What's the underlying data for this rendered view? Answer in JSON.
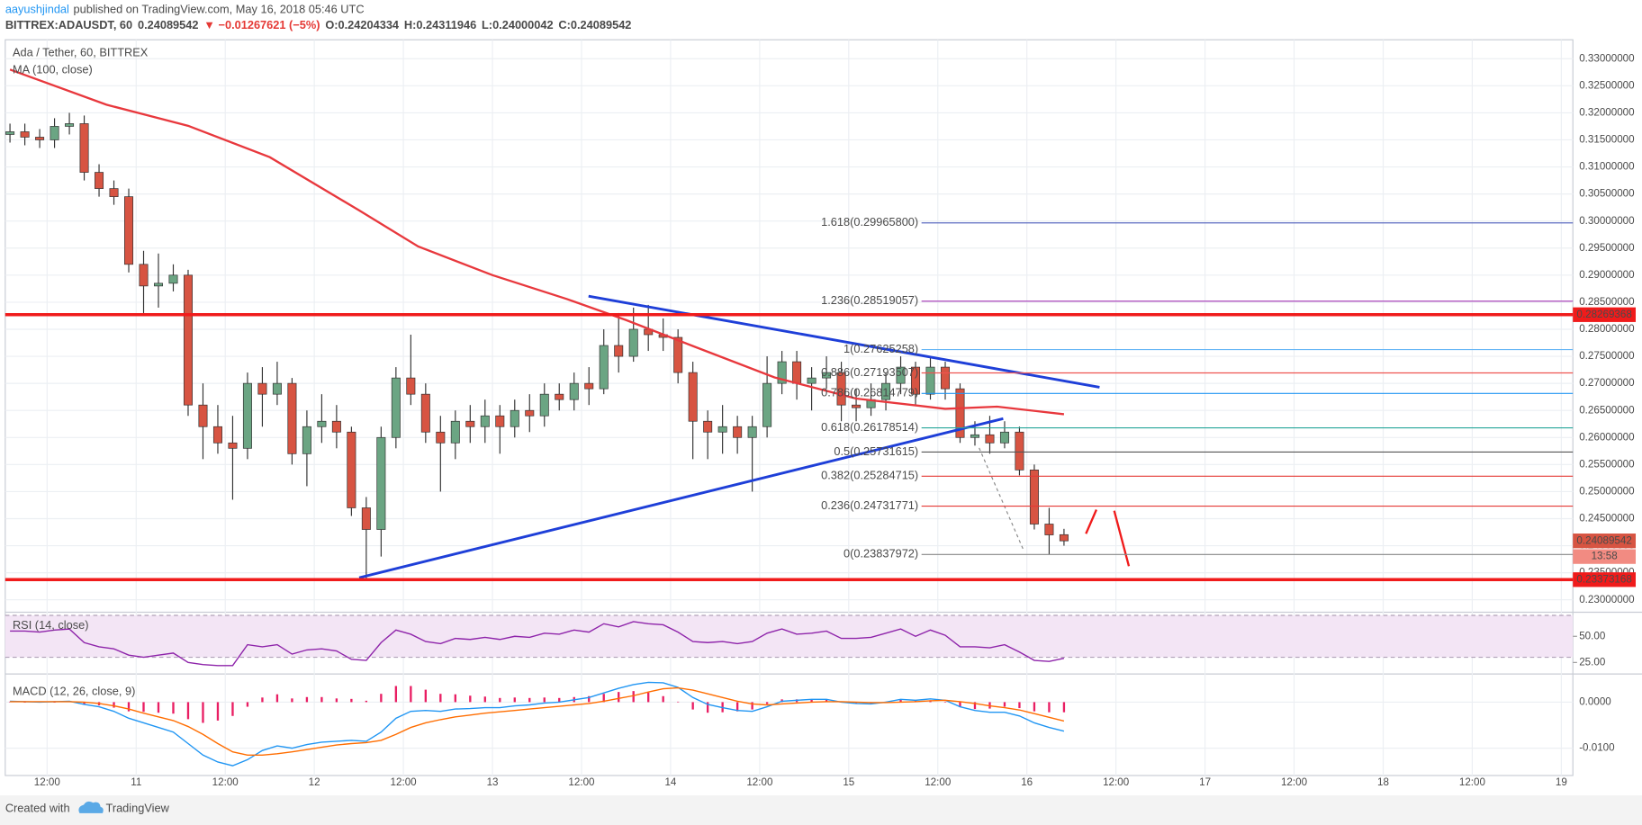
{
  "header": {
    "author": "aayushjindal",
    "published": "published on TradingView.com, May 16, 2018 05:46 UTC",
    "symbol": "BITTREX:ADAUSDT, 60",
    "last": "0.24089542",
    "change": "▼ −0.01267621 (−5%)",
    "ohlc": [
      "O:0.24204334",
      "H:0.24311946",
      "L:0.24000042",
      "C:0.24089542"
    ]
  },
  "footer": {
    "created": "Created with",
    "brand": "TradingView"
  },
  "chart_data": {
    "type": "candlestick",
    "title": "Ada / Tether, 60, BITTREX",
    "up_color": "#6ba583",
    "down_color": "#d75442",
    "grid": true,
    "x": [
      7,
      9,
      11,
      13,
      15,
      17,
      19,
      21,
      23,
      25,
      27,
      29,
      31,
      33,
      35,
      37,
      39,
      41,
      43,
      45,
      47,
      49,
      51,
      53,
      55,
      57,
      59,
      61,
      63,
      65,
      67,
      69,
      71,
      73,
      75,
      77,
      79,
      81,
      83,
      85,
      87,
      89,
      91,
      93,
      95,
      97,
      99,
      101,
      103,
      105,
      107,
      109,
      111,
      113,
      115,
      117,
      119,
      121,
      123,
      125,
      127,
      129,
      131,
      133,
      135,
      137,
      139,
      141,
      143,
      145,
      147,
      149
    ],
    "open": [
      0.316,
      0.3165,
      0.3155,
      0.315,
      0.3175,
      0.318,
      0.309,
      0.306,
      0.3045,
      0.292,
      0.288,
      0.2885,
      0.29,
      0.266,
      0.262,
      0.259,
      0.258,
      0.27,
      0.268,
      0.27,
      0.257,
      0.262,
      0.263,
      0.261,
      0.247,
      0.243,
      0.26,
      0.271,
      0.268,
      0.261,
      0.259,
      0.263,
      0.262,
      0.264,
      0.262,
      0.265,
      0.264,
      0.268,
      0.267,
      0.27,
      0.269,
      0.277,
      0.275,
      0.28,
      0.279,
      0.2785,
      0.272,
      0.263,
      0.261,
      0.262,
      0.26,
      0.262,
      0.27,
      0.274,
      0.27,
      0.271,
      0.272,
      0.266,
      0.2655,
      0.267,
      0.27,
      0.273,
      0.268,
      0.273,
      0.269,
      0.26,
      0.2605,
      0.259,
      0.261,
      0.254,
      0.244,
      0.24204334
    ],
    "high": [
      0.318,
      0.318,
      0.317,
      0.319,
      0.32,
      0.3195,
      0.3105,
      0.3075,
      0.306,
      0.2945,
      0.294,
      0.292,
      0.291,
      0.27,
      0.266,
      0.264,
      0.272,
      0.273,
      0.274,
      0.271,
      0.265,
      0.268,
      0.266,
      0.262,
      0.249,
      0.262,
      0.273,
      0.279,
      0.27,
      0.264,
      0.265,
      0.266,
      0.267,
      0.266,
      0.267,
      0.268,
      0.27,
      0.27,
      0.272,
      0.273,
      0.28,
      0.283,
      0.284,
      0.2845,
      0.282,
      0.28,
      0.274,
      0.265,
      0.266,
      0.264,
      0.264,
      0.275,
      0.276,
      0.276,
      0.273,
      0.275,
      0.274,
      0.269,
      0.27,
      0.272,
      0.275,
      0.274,
      0.275,
      0.274,
      0.27,
      0.263,
      0.264,
      0.263,
      0.262,
      0.255,
      0.247,
      0.24311946
    ],
    "low": [
      0.3145,
      0.314,
      0.3135,
      0.3135,
      0.316,
      0.3075,
      0.3045,
      0.303,
      0.2905,
      0.283,
      0.284,
      0.287,
      0.264,
      0.256,
      0.257,
      0.2485,
      0.256,
      0.262,
      0.266,
      0.255,
      0.251,
      0.259,
      0.258,
      0.2455,
      0.2337,
      0.238,
      0.258,
      0.266,
      0.259,
      0.25,
      0.256,
      0.259,
      0.259,
      0.257,
      0.26,
      0.261,
      0.262,
      0.265,
      0.265,
      0.266,
      0.268,
      0.272,
      0.274,
      0.276,
      0.276,
      0.27,
      0.256,
      0.256,
      0.257,
      0.257,
      0.25,
      0.26,
      0.268,
      0.267,
      0.265,
      0.269,
      0.263,
      0.263,
      0.264,
      0.265,
      0.268,
      0.266,
      0.267,
      0.267,
      0.259,
      0.2585,
      0.257,
      0.258,
      0.253,
      0.243,
      0.2384,
      0.24000042
    ],
    "close": [
      0.3165,
      0.3155,
      0.315,
      0.3175,
      0.318,
      0.309,
      0.306,
      0.3045,
      0.292,
      0.288,
      0.2885,
      0.29,
      0.266,
      0.262,
      0.259,
      0.258,
      0.27,
      0.268,
      0.27,
      0.257,
      0.262,
      0.263,
      0.261,
      0.247,
      0.243,
      0.26,
      0.271,
      0.268,
      0.261,
      0.259,
      0.263,
      0.262,
      0.264,
      0.262,
      0.265,
      0.264,
      0.268,
      0.267,
      0.27,
      0.269,
      0.277,
      0.275,
      0.28,
      0.279,
      0.2785,
      0.272,
      0.263,
      0.261,
      0.262,
      0.26,
      0.262,
      0.27,
      0.274,
      0.27,
      0.271,
      0.272,
      0.266,
      0.2655,
      0.267,
      0.27,
      0.273,
      0.268,
      0.273,
      0.269,
      0.26,
      0.2605,
      0.259,
      0.261,
      0.254,
      0.244,
      0.242,
      0.24089542
    ],
    "xlim": [
      6.36,
      217.56
    ],
    "xticks": [
      {
        "value": 12,
        "label": "12:00"
      },
      {
        "value": 24,
        "label": "11"
      },
      {
        "value": 36,
        "label": "12:00"
      },
      {
        "value": 48,
        "label": "12"
      },
      {
        "value": 60,
        "label": "12:00"
      },
      {
        "value": 72,
        "label": "13"
      },
      {
        "value": 84,
        "label": "12:00"
      },
      {
        "value": 96,
        "label": "14"
      },
      {
        "value": 108,
        "label": "12:00"
      },
      {
        "value": 120,
        "label": "15"
      },
      {
        "value": 132,
        "label": "12:00"
      },
      {
        "value": 144,
        "label": "16"
      },
      {
        "value": 156,
        "label": "12:00"
      },
      {
        "value": 168,
        "label": "17"
      },
      {
        "value": 180,
        "label": "12:00"
      },
      {
        "value": 192,
        "label": "18"
      },
      {
        "value": 204,
        "label": "12:00"
      },
      {
        "value": 216,
        "label": "19"
      }
    ],
    "ylim": [
      0.2279,
      0.3335
    ],
    "yticks": [
      {
        "value": 0.23,
        "label": "0.23000000"
      },
      {
        "value": 0.235,
        "label": "0.23500000"
      },
      {
        "value": 0.24,
        "label": "0.24000000"
      },
      {
        "value": 0.245,
        "label": "0.24500000"
      },
      {
        "value": 0.25,
        "label": "0.25000000"
      },
      {
        "value": 0.255,
        "label": "0.25500000"
      },
      {
        "value": 0.26,
        "label": "0.26000000"
      },
      {
        "value": 0.265,
        "label": "0.26500000"
      },
      {
        "value": 0.27,
        "label": "0.27000000"
      },
      {
        "value": 0.275,
        "label": "0.27500000"
      },
      {
        "value": 0.28,
        "label": "0.28000000"
      },
      {
        "value": 0.285,
        "label": "0.28500000"
      },
      {
        "value": 0.29,
        "label": "0.29000000"
      },
      {
        "value": 0.295,
        "label": "0.29500000"
      },
      {
        "value": 0.3,
        "label": "0.30000000"
      },
      {
        "value": 0.305,
        "label": "0.30500000"
      },
      {
        "value": 0.31,
        "label": "0.31000000"
      },
      {
        "value": 0.315,
        "label": "0.31500000"
      },
      {
        "value": 0.32,
        "label": "0.32000000"
      },
      {
        "value": 0.325,
        "label": "0.32500000"
      },
      {
        "value": 0.33,
        "label": "0.33000000"
      }
    ],
    "ma": {
      "name": "MA (100, close)",
      "color": "#e8383d",
      "x": [
        7,
        20,
        31,
        42,
        54,
        62,
        72,
        82,
        90,
        99,
        110,
        121,
        133,
        140,
        149
      ],
      "values": [
        0.328,
        0.3215,
        0.3176,
        0.3118,
        0.302,
        0.2953,
        0.29,
        0.2856,
        0.2817,
        0.2769,
        0.2711,
        0.2672,
        0.2653,
        0.2657,
        0.2643
      ]
    },
    "fib_levels": [
      {
        "value": 0.299658,
        "label": "1.618(0.29965800)",
        "color": "#5c6bc0"
      },
      {
        "value": 0.28519057,
        "label": "1.236(0.28519057)",
        "color": "#ab47bc"
      },
      {
        "value": 0.27625258,
        "label": "1(0.27625258)",
        "color": "#64b5f6"
      },
      {
        "value": 0.27193507,
        "label": "0.886(0.27193507)",
        "color": "#ef5350"
      },
      {
        "value": 0.26814779,
        "label": "0.786(0.26814779)",
        "color": "#2196f3"
      },
      {
        "value": 0.26178514,
        "label": "0.618(0.26178514)",
        "color": "#26a69a"
      },
      {
        "value": 0.25731615,
        "label": "0.5(0.25731615)",
        "color": "#555555"
      },
      {
        "value": 0.25284715,
        "label": "0.382(0.25284715)",
        "color": "#e53935"
      },
      {
        "value": 0.24731771,
        "label": "0.236(0.24731771)",
        "color": "#e53935"
      },
      {
        "value": 0.23837972,
        "label": "0(0.23837972)",
        "color": "#888888"
      }
    ],
    "hlines": [
      0.28269368,
      0.23373168
    ],
    "hline_color": "#f01b1b",
    "countdown": "13:58",
    "rsi": {
      "name": "RSI (14, close)",
      "color": "#8e24aa",
      "ylim": [
        16,
        71
      ],
      "yticks": [
        {
          "value": 25,
          "label": "25.00"
        },
        {
          "value": 50,
          "label": "50.00"
        }
      ],
      "band": [
        30,
        70
      ],
      "values": [
        55,
        55,
        54,
        56,
        57,
        44,
        40,
        38,
        32,
        30,
        32,
        34,
        25,
        23,
        22,
        22,
        42,
        40,
        42,
        33,
        37,
        38,
        36,
        28,
        27,
        44,
        56,
        52,
        45,
        43,
        48,
        47,
        49,
        47,
        50,
        49,
        53,
        52,
        56,
        54,
        62,
        59,
        64,
        62,
        61,
        54,
        45,
        44,
        45,
        43,
        45,
        53,
        57,
        52,
        53,
        55,
        48,
        48,
        49,
        53,
        57,
        50,
        56,
        51,
        40,
        40,
        39,
        42,
        35,
        27,
        26,
        29
      ]
    },
    "macd": {
      "name": "MACD (12, 26, close, 9)",
      "ylim": [
        -0.0157,
        0.0052
      ],
      "yticks": [
        {
          "value": 0,
          "label": "0.0000"
        },
        {
          "value": -0.01,
          "label": "-0.0100"
        }
      ],
      "histogram": {
        "color": "#e91e63",
        "values": [
          0.0001,
          0.0,
          -0.0001,
          0.0,
          0.0001,
          -0.0005,
          -0.0007,
          -0.0012,
          -0.002,
          -0.0021,
          -0.0023,
          -0.0025,
          -0.0037,
          -0.0045,
          -0.004,
          -0.003,
          -0.001,
          0.001,
          0.0017,
          0.0008,
          0.0011,
          0.0011,
          0.0008,
          0.0007,
          0.0003,
          0.0018,
          0.0035,
          0.0035,
          0.0027,
          0.0018,
          0.0017,
          0.0014,
          0.0012,
          0.0009,
          0.001,
          0.0009,
          0.001,
          0.0009,
          0.0011,
          0.0013,
          0.0018,
          0.0022,
          0.0024,
          0.0021,
          0.0013,
          0.0001,
          -0.0016,
          -0.0023,
          -0.0022,
          -0.002,
          -0.0016,
          -0.0004,
          0.0006,
          0.0006,
          0.0006,
          0.0005,
          -0.0001,
          -0.0003,
          -0.0003,
          0.0001,
          0.0006,
          0.0003,
          0.0004,
          0.0,
          -0.0011,
          -0.0015,
          -0.0014,
          -0.001,
          -0.0013,
          -0.002,
          -0.0022,
          -0.0022
        ]
      },
      "series": [
        {
          "color": "#2196f3",
          "values": [
            0.0002,
            0.0001,
            0.0,
            0.0001,
            0.0002,
            -0.0005,
            -0.001,
            -0.002,
            -0.0035,
            -0.0045,
            -0.0055,
            -0.0065,
            -0.009,
            -0.0115,
            -0.013,
            -0.0138,
            -0.0125,
            -0.0105,
            -0.0095,
            -0.01,
            -0.0092,
            -0.0087,
            -0.0085,
            -0.0083,
            -0.0085,
            -0.0065,
            -0.0035,
            -0.002,
            -0.0018,
            -0.002,
            -0.0015,
            -0.0014,
            -0.0012,
            -0.0012,
            -0.0008,
            -0.0006,
            -0.0002,
            0.0,
            0.0005,
            0.001,
            0.002,
            0.003,
            0.0038,
            0.0043,
            0.0042,
            0.0032,
            0.001,
            -0.0005,
            -0.0012,
            -0.0018,
            -0.002,
            -0.001,
            0.0002,
            0.0004,
            0.0006,
            0.0006,
            0.0,
            -0.0003,
            -0.0004,
            0.0,
            0.0006,
            0.0004,
            0.0007,
            0.0004,
            -0.001,
            -0.0018,
            -0.0022,
            -0.0022,
            -0.003,
            -0.0045,
            -0.0055,
            -0.0063
          ]
        },
        {
          "color": "#ff6d00",
          "values": [
            0.0001,
            0.0001,
            0.0001,
            0.0001,
            0.0001,
            0.0,
            -0.0003,
            -0.0008,
            -0.0015,
            -0.0024,
            -0.0032,
            -0.004,
            -0.0053,
            -0.007,
            -0.009,
            -0.0108,
            -0.0115,
            -0.0115,
            -0.0112,
            -0.0108,
            -0.0103,
            -0.0098,
            -0.0093,
            -0.009,
            -0.0088,
            -0.0083,
            -0.007,
            -0.0055,
            -0.0045,
            -0.0038,
            -0.0032,
            -0.0028,
            -0.0024,
            -0.0021,
            -0.0018,
            -0.0015,
            -0.0012,
            -0.0009,
            -0.0006,
            -0.0003,
            0.0002,
            0.0008,
            0.0014,
            0.0022,
            0.0029,
            0.0031,
            0.0026,
            0.0018,
            0.001,
            0.0002,
            -0.0004,
            -0.0006,
            -0.0004,
            -0.0002,
            0.0,
            0.0001,
            0.0001,
            0.0,
            -0.0001,
            -0.0001,
            0.0,
            0.0001,
            0.0003,
            0.0004,
            0.0001,
            -0.0003,
            -0.0008,
            -0.0012,
            -0.0017,
            -0.0025,
            -0.0033,
            -0.0041
          ]
        }
      ]
    }
  }
}
